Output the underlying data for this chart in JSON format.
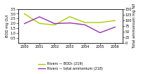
{
  "years": [
    2000,
    2001,
    2002,
    2003,
    2004,
    2005,
    2006
  ],
  "bod": [
    3.0,
    2.0,
    1.85,
    2.7,
    2.1,
    2.1,
    2.3
  ],
  "ammonium_right": [
    85,
    115,
    85,
    88,
    80,
    45,
    70
  ],
  "bod_color": "#aacc00",
  "ammonium_color": "#9933aa",
  "bod_label": "Rivers — BOD₅ (219)",
  "ammonium_label": "Rivers — total ammonium (218)",
  "left_ylabel": "BOD mg O₂/l",
  "right_ylabel": "Total ammonium mg N/l",
  "ylim_left": [
    0.0,
    3.5
  ],
  "ylim_right": [
    0,
    150
  ],
  "left_yticks": [
    0.5,
    1.0,
    1.5,
    2.0,
    2.5,
    3.0,
    3.5
  ],
  "right_yticks": [
    0,
    25,
    50,
    75,
    100,
    125,
    150
  ],
  "background_color": "#ffffff"
}
